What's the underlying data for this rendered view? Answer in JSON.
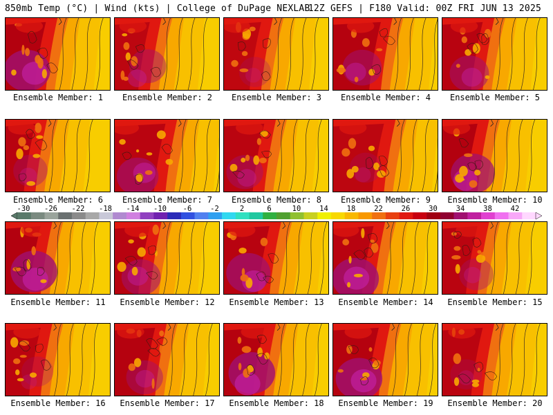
{
  "header": {
    "left": "850mb Temp (°C) | Wind (kts) | College of DuPage NEXLAB",
    "right": "12Z GEFS | F180 Valid: 00Z FRI JUN 13 2025"
  },
  "members": [
    {
      "id": 1,
      "label": "Ensemble Member: 1",
      "warm": 0.95,
      "front": 0.55,
      "pink": 0.9
    },
    {
      "id": 2,
      "label": "Ensemble Member: 2",
      "warm": 0.75,
      "front": 0.5,
      "pink": 0.5
    },
    {
      "id": 3,
      "label": "Ensemble Member: 3",
      "warm": 0.7,
      "front": 0.52,
      "pink": 0.3
    },
    {
      "id": 4,
      "label": "Ensemble Member: 4",
      "warm": 0.9,
      "front": 0.62,
      "pink": 0.6
    },
    {
      "id": 5,
      "label": "Ensemble Member: 5",
      "warm": 0.85,
      "front": 0.55,
      "pink": 0.6
    },
    {
      "id": 6,
      "label": "Ensemble Member: 6",
      "warm": 0.85,
      "front": 0.45,
      "pink": 0.4
    },
    {
      "id": 7,
      "label": "Ensemble Member: 7",
      "warm": 0.8,
      "front": 0.65,
      "pink": 0.7
    },
    {
      "id": 8,
      "label": "Ensemble Member: 8",
      "warm": 0.8,
      "front": 0.55,
      "pink": 0.5
    },
    {
      "id": 9,
      "label": "Ensemble Member: 9",
      "warm": 0.75,
      "front": 0.65,
      "pink": 0.3
    },
    {
      "id": 10,
      "label": "Ensemble Member: 10",
      "warm": 0.95,
      "front": 0.5,
      "pink": 0.8
    },
    {
      "id": 11,
      "label": "Ensemble Member: 11",
      "warm": 0.95,
      "front": 0.5,
      "pink": 0.9
    },
    {
      "id": 12,
      "label": "Ensemble Member: 12",
      "warm": 0.85,
      "front": 0.5,
      "pink": 0.6
    },
    {
      "id": 13,
      "label": "Ensemble Member: 13",
      "warm": 0.85,
      "front": 0.6,
      "pink": 0.8
    },
    {
      "id": 14,
      "label": "Ensemble Member: 14",
      "warm": 0.85,
      "front": 0.55,
      "pink": 0.9
    },
    {
      "id": 15,
      "label": "Ensemble Member: 15",
      "warm": 0.8,
      "front": 0.5,
      "pink": 0.4
    },
    {
      "id": 16,
      "label": "Ensemble Member: 16",
      "warm": 0.8,
      "front": 0.5,
      "pink": 0.3
    },
    {
      "id": 17,
      "label": "Ensemble Member: 17",
      "warm": 0.9,
      "front": 0.55,
      "pink": 0.5
    },
    {
      "id": 18,
      "label": "Ensemble Member: 18",
      "warm": 0.9,
      "front": 0.55,
      "pink": 0.9
    },
    {
      "id": 19,
      "label": "Ensemble Member: 19",
      "warm": 0.9,
      "front": 0.6,
      "pink": 0.9
    },
    {
      "id": 20,
      "label": "Ensemble Member: 20",
      "warm": 0.8,
      "front": 0.55,
      "pink": 0.3
    }
  ],
  "colorbar": {
    "ticks": [
      "-30",
      "-26",
      "-22",
      "-18",
      "-14",
      "-10",
      "-6",
      "-2",
      "2",
      "6",
      "10",
      "14",
      "18",
      "22",
      "26",
      "30",
      "34",
      "38",
      "42"
    ],
    "colors": [
      "#5a7a6a",
      "#7a8a80",
      "#9aa49c",
      "#6a7070",
      "#8a8a8a",
      "#a8a8a8",
      "#c8c8d8",
      "#b08ad0",
      "#d080e0",
      "#9040c0",
      "#7020b0",
      "#2a2ab8",
      "#3050e0",
      "#5080f0",
      "#30a0f0",
      "#30d8f0",
      "#30e0c0",
      "#20c8a0",
      "#30b040",
      "#50a030",
      "#90c030",
      "#c8d020",
      "#f0f000",
      "#f8d800",
      "#f8b800",
      "#f89800",
      "#f07010",
      "#e84010",
      "#e01810",
      "#c80010",
      "#a00010",
      "#900030",
      "#a01070",
      "#c020a0",
      "#e040d0",
      "#f070f0",
      "#f8a8f8",
      "#ffd8ff"
    ]
  }
}
